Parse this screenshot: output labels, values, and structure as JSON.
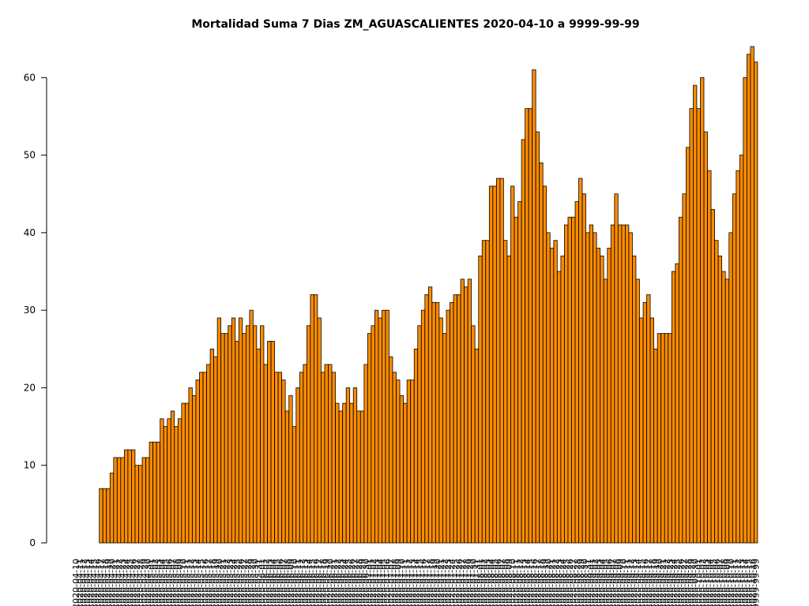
{
  "chart_data": {
    "type": "bar",
    "title": "Mortalidad Suma 7 Dias ZM_AGUASCALIENTES 2020-04-10 a 9999-99-99",
    "xlabel": "",
    "ylabel": "",
    "ylim": [
      0,
      64
    ],
    "yticks": [
      0,
      10,
      20,
      30,
      40,
      50,
      60
    ],
    "bar_color": "#ff8c00",
    "edge_color": "#000000",
    "first_date": "2020-04-10",
    "last_label": "9999-99-99",
    "values": [
      0,
      0,
      0,
      0,
      0,
      0,
      0,
      7,
      7,
      7,
      9,
      11,
      11,
      11,
      12,
      12,
      12,
      10,
      10,
      11,
      11,
      13,
      13,
      13,
      16,
      15,
      16,
      17,
      15,
      16,
      18,
      18,
      20,
      19,
      21,
      22,
      22,
      23,
      25,
      24,
      29,
      27,
      27,
      28,
      29,
      26,
      29,
      27,
      28,
      30,
      28,
      25,
      28,
      23,
      26,
      26,
      22,
      22,
      21,
      17,
      19,
      15,
      20,
      22,
      23,
      28,
      32,
      32,
      29,
      22,
      23,
      23,
      22,
      18,
      17,
      18,
      20,
      18,
      20,
      17,
      17,
      23,
      27,
      28,
      30,
      29,
      30,
      30,
      24,
      22,
      21,
      19,
      18,
      21,
      21,
      25,
      28,
      30,
      32,
      33,
      31,
      31,
      29,
      27,
      30,
      31,
      32,
      32,
      34,
      33,
      34,
      28,
      25,
      37,
      39,
      39,
      46,
      46,
      47,
      47,
      39,
      37,
      46,
      42,
      44,
      52,
      56,
      56,
      61,
      53,
      49,
      46,
      40,
      38,
      39,
      35,
      37,
      41,
      42,
      42,
      44,
      47,
      45,
      40,
      41,
      40,
      38,
      37,
      34,
      38,
      41,
      45,
      41,
      41,
      41,
      40,
      37,
      34,
      29,
      31,
      32,
      29,
      25,
      27,
      27,
      27,
      27,
      35,
      36,
      42,
      45,
      51,
      56,
      59,
      56,
      60,
      53,
      48,
      43,
      39,
      37,
      35,
      34,
      40,
      45,
      48,
      50,
      60,
      63,
      64,
      62
    ]
  }
}
